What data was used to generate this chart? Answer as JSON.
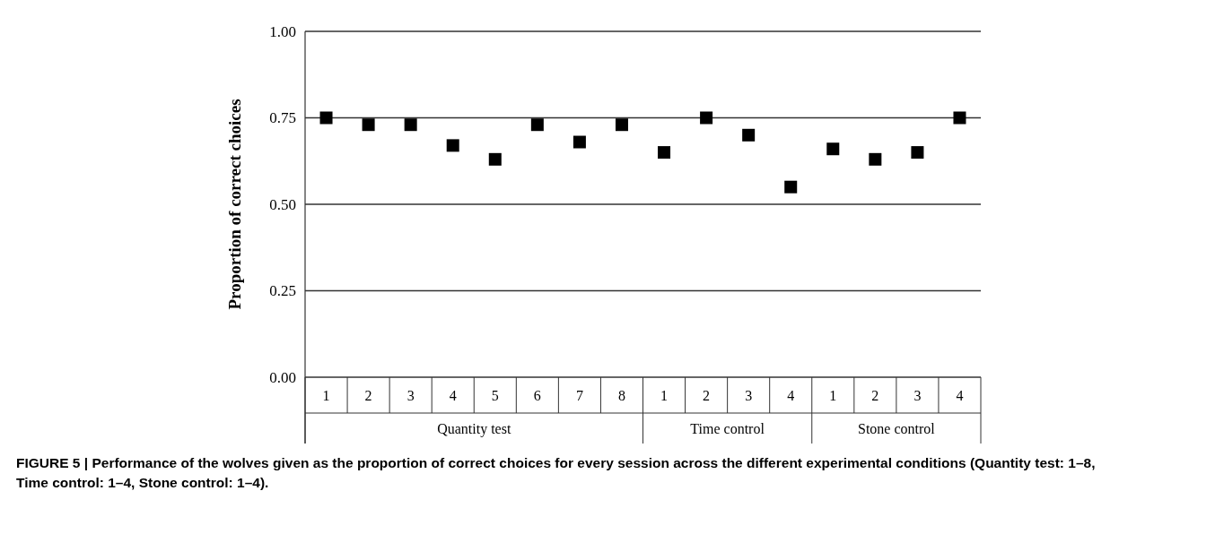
{
  "chart_data": {
    "type": "scatter",
    "ylabel": "Proportion of correct choices",
    "categories": [
      "1",
      "2",
      "3",
      "4",
      "5",
      "6",
      "7",
      "8",
      "1",
      "2",
      "3",
      "4",
      "1",
      "2",
      "3",
      "4"
    ],
    "series": [
      {
        "color": "#000000",
        "values": [
          0.75,
          0.73,
          0.73,
          0.67,
          0.63,
          0.73,
          0.68,
          0.73,
          0.65,
          0.75,
          0.7,
          0.55,
          0.66,
          0.63,
          0.65,
          0.75
        ]
      }
    ],
    "ylim": [
      0,
      1
    ],
    "yticks": [
      {
        "value": 0,
        "label": "0.00"
      },
      {
        "value": 0.25,
        "label": "0.25"
      },
      {
        "value": 0.5,
        "label": "0.50"
      },
      {
        "value": 0.75,
        "label": "0.75"
      },
      {
        "value": 1,
        "label": "1.00"
      }
    ],
    "grid": "y",
    "marker": "square",
    "annotations": [
      "Quantity test",
      "Time control",
      "Stone control",
      "FIGURE 5 | Performance of the wolves given as the proportion of correct choices for every session across the different experimental conditions (Quantity test: 1–8, Time control: 1–4, Stone control: 1–4)."
    ]
  }
}
